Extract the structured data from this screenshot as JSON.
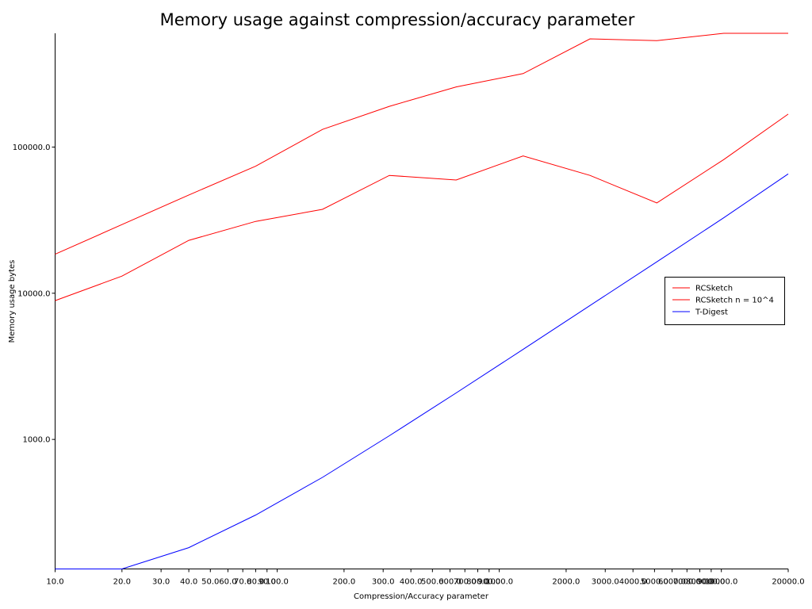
{
  "chart_data": {
    "type": "line",
    "title": "Memory usage against compression/accuracy parameter",
    "xlabel": "Compression/Accuracy parameter",
    "ylabel": "Memory usage bytes",
    "xscale": "log",
    "yscale": "log",
    "xlim": [
      10,
      20000
    ],
    "ylim": [
      130,
      600000
    ],
    "grid": false,
    "legend_position": "right",
    "x_ticks": [
      {
        "value": 10,
        "label": "10.0"
      },
      {
        "value": 20,
        "label": "20.0"
      },
      {
        "value": 30,
        "label": "30.0"
      },
      {
        "value": 40,
        "label": "40.0"
      },
      {
        "value": 50,
        "label": "50.0"
      },
      {
        "value": 60,
        "label": "60.0"
      },
      {
        "value": 70,
        "label": "70.0"
      },
      {
        "value": 80,
        "label": "80.0"
      },
      {
        "value": 90,
        "label": "90.0"
      },
      {
        "value": 100,
        "label": "100.0"
      },
      {
        "value": 200,
        "label": "200.0"
      },
      {
        "value": 300,
        "label": "300.0"
      },
      {
        "value": 400,
        "label": "400.0"
      },
      {
        "value": 500,
        "label": "500.0"
      },
      {
        "value": 600,
        "label": "600.0"
      },
      {
        "value": 700,
        "label": "700.0"
      },
      {
        "value": 800,
        "label": "800.0"
      },
      {
        "value": 900,
        "label": "900.0"
      },
      {
        "value": 1000,
        "label": "1000.0"
      },
      {
        "value": 2000,
        "label": "2000.0"
      },
      {
        "value": 3000,
        "label": "3000.0"
      },
      {
        "value": 4000,
        "label": "4000.0"
      },
      {
        "value": 5000,
        "label": "5000.0"
      },
      {
        "value": 6000,
        "label": "6000.0"
      },
      {
        "value": 7000,
        "label": "7000.0"
      },
      {
        "value": 8000,
        "label": "8000.0"
      },
      {
        "value": 9000,
        "label": "9000.0"
      },
      {
        "value": 10000,
        "label": "10000.0"
      },
      {
        "value": 20000,
        "label": "20000.0"
      }
    ],
    "y_ticks": [
      {
        "value": 1000,
        "label": "1000.0"
      },
      {
        "value": 10000,
        "label": "10000.0"
      },
      {
        "value": 100000,
        "label": "100000.0"
      }
    ],
    "series": [
      {
        "name": "RCSketch",
        "color": "#ff0000",
        "x": [
          10,
          20,
          40,
          80,
          160,
          320,
          640,
          1280,
          2560,
          5120,
          10240,
          20000
        ],
        "y": [
          18500,
          29500,
          47000,
          74000,
          132000,
          190000,
          258000,
          318000,
          550000,
          535000,
          810000,
          700000
        ]
      },
      {
        "name": "RCSketch n = 10^4",
        "color": "#ff0000",
        "x": [
          10,
          20,
          40,
          80,
          160,
          320,
          640,
          1280,
          2560,
          5120,
          10240,
          20000
        ],
        "y": [
          8900,
          13100,
          23000,
          31000,
          37500,
          64000,
          59500,
          87000,
          64000,
          41500,
          82000,
          168000
        ]
      },
      {
        "name": "T-Digest",
        "color": "#0000ff",
        "x": [
          10,
          20,
          40,
          80,
          160,
          320,
          640,
          1280,
          2560,
          5120,
          10240,
          20000
        ],
        "y": [
          120,
          120,
          182,
          304,
          550,
          1060,
          2080,
          4130,
          8240,
          16400,
          32800,
          65500
        ]
      }
    ]
  }
}
